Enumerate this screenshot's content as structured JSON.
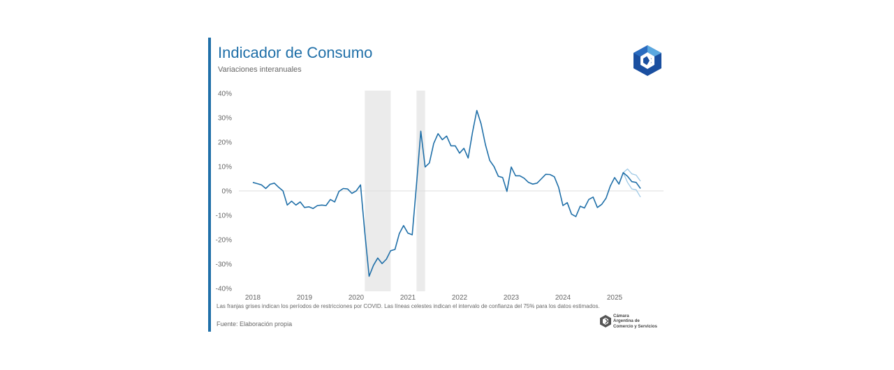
{
  "header": {
    "title": "Indicador de Consumo",
    "subtitle": "Variaciones interanuales"
  },
  "footer": {
    "note": "Las franjas grises indican los períodos de restricciones por COVID. Las líneas celestes indican el intervalo de confianza del 75% para los datos estimados.",
    "source": "Fuente: Elaboración propia"
  },
  "logos": {
    "chamber_name_lines": [
      "Cámara",
      "Argentina de",
      "Comercio y Servicios"
    ]
  },
  "colors": {
    "accent": "#1f6fa8",
    "series": "#1f6fa8",
    "confidence_band": "#9ec9e6",
    "covid_band": "#ebebeb",
    "zero_line": "#dddddd"
  },
  "chart_data": {
    "type": "line",
    "title": "Indicador de Consumo",
    "subtitle": "Variaciones interanuales",
    "xlabel": "",
    "ylabel": "",
    "ylim": [
      -40,
      40
    ],
    "yticks": [
      40,
      30,
      20,
      10,
      0,
      -10,
      -20,
      -30,
      -40
    ],
    "ytick_labels": [
      "40%",
      "30%",
      "20%",
      "10%",
      "0%",
      "-10%",
      "-20%",
      "-30%",
      "-40%"
    ],
    "x_unit": "date",
    "xticks": [
      2018,
      2019,
      2020,
      2021,
      2022,
      2023,
      2024,
      2025
    ],
    "xtick_labels": [
      "2018",
      "2019",
      "2020",
      "2021",
      "2022",
      "2023",
      "2024",
      "2025"
    ],
    "grid": false,
    "covid_shaded_periods": [
      {
        "start": "2020-03",
        "end": "2020-09"
      },
      {
        "start": "2021-03",
        "end": "2021-05"
      }
    ],
    "series": [
      {
        "values": [
          [
            "2018-01",
            3.5
          ],
          [
            "2018-02",
            3.0
          ],
          [
            "2018-03",
            2.5
          ],
          [
            "2018-04",
            1.0
          ],
          [
            "2018-05",
            2.7
          ],
          [
            "2018-06",
            3.2
          ],
          [
            "2018-07",
            1.5
          ],
          [
            "2018-08",
            0.0
          ],
          [
            "2018-09",
            -5.8
          ],
          [
            "2018-10",
            -4.2
          ],
          [
            "2018-11",
            -5.8
          ],
          [
            "2018-12",
            -4.5
          ],
          [
            "2019-01",
            -6.8
          ],
          [
            "2019-02",
            -6.5
          ],
          [
            "2019-03",
            -7.2
          ],
          [
            "2019-04",
            -6.0
          ],
          [
            "2019-05",
            -5.8
          ],
          [
            "2019-06",
            -6.0
          ],
          [
            "2019-07",
            -3.5
          ],
          [
            "2019-08",
            -4.5
          ],
          [
            "2019-09",
            -0.2
          ],
          [
            "2019-10",
            1.0
          ],
          [
            "2019-11",
            0.8
          ],
          [
            "2019-12",
            -1.0
          ],
          [
            "2020-01",
            0.0
          ],
          [
            "2020-02",
            2.5
          ],
          [
            "2020-03",
            -17.0
          ],
          [
            "2020-04",
            -35.0
          ],
          [
            "2020-05",
            -30.5
          ],
          [
            "2020-06",
            -27.5
          ],
          [
            "2020-07",
            -29.8
          ],
          [
            "2020-08",
            -28.0
          ],
          [
            "2020-09",
            -24.5
          ],
          [
            "2020-10",
            -24.0
          ],
          [
            "2020-11",
            -17.5
          ],
          [
            "2020-12",
            -14.2
          ],
          [
            "2021-01",
            -17.3
          ],
          [
            "2021-02",
            -18.0
          ],
          [
            "2021-03",
            2.5
          ],
          [
            "2021-04",
            24.5
          ],
          [
            "2021-05",
            9.8
          ],
          [
            "2021-06",
            11.5
          ],
          [
            "2021-07",
            19.5
          ],
          [
            "2021-08",
            23.5
          ],
          [
            "2021-09",
            21.0
          ],
          [
            "2021-10",
            22.5
          ],
          [
            "2021-11",
            18.5
          ],
          [
            "2021-12",
            18.5
          ],
          [
            "2022-01",
            15.5
          ],
          [
            "2022-02",
            17.5
          ],
          [
            "2022-03",
            13.5
          ],
          [
            "2022-04",
            24.0
          ],
          [
            "2022-05",
            33.0
          ],
          [
            "2022-06",
            27.5
          ],
          [
            "2022-07",
            19.0
          ],
          [
            "2022-08",
            12.5
          ],
          [
            "2022-09",
            10.0
          ],
          [
            "2022-10",
            6.0
          ],
          [
            "2022-11",
            5.5
          ],
          [
            "2022-12",
            -0.2
          ],
          [
            "2023-01",
            9.8
          ],
          [
            "2023-02",
            6.2
          ],
          [
            "2023-03",
            6.2
          ],
          [
            "2023-04",
            5.2
          ],
          [
            "2023-05",
            3.5
          ],
          [
            "2023-06",
            2.8
          ],
          [
            "2023-07",
            3.2
          ],
          [
            "2023-08",
            5.0
          ],
          [
            "2023-09",
            6.8
          ],
          [
            "2023-10",
            6.7
          ],
          [
            "2023-11",
            5.8
          ],
          [
            "2023-12",
            1.5
          ],
          [
            "2024-01",
            -6.0
          ],
          [
            "2024-02",
            -4.8
          ],
          [
            "2024-03",
            -9.5
          ],
          [
            "2024-04",
            -10.5
          ],
          [
            "2024-05",
            -6.3
          ],
          [
            "2024-06",
            -7.0
          ],
          [
            "2024-07",
            -3.5
          ],
          [
            "2024-08",
            -2.5
          ],
          [
            "2024-09",
            -6.8
          ],
          [
            "2024-10",
            -5.5
          ],
          [
            "2024-11",
            -3.0
          ],
          [
            "2024-12",
            2.0
          ],
          [
            "2025-01",
            5.5
          ],
          [
            "2025-02",
            2.8
          ],
          [
            "2025-03",
            7.5
          ],
          [
            "2025-04",
            6.0
          ],
          [
            "2025-05",
            3.8
          ],
          [
            "2025-06",
            3.5
          ],
          [
            "2025-07",
            1.0
          ]
        ]
      }
    ],
    "confidence_interval_75": {
      "upper": [
        [
          "2025-03",
          7.5
        ],
        [
          "2025-04",
          9.0
        ],
        [
          "2025-05",
          7.0
        ],
        [
          "2025-06",
          6.5
        ],
        [
          "2025-07",
          4.0
        ]
      ],
      "lower": [
        [
          "2025-03",
          7.5
        ],
        [
          "2025-04",
          3.5
        ],
        [
          "2025-05",
          0.8
        ],
        [
          "2025-06",
          0.5
        ],
        [
          "2025-07",
          -2.5
        ]
      ]
    }
  }
}
